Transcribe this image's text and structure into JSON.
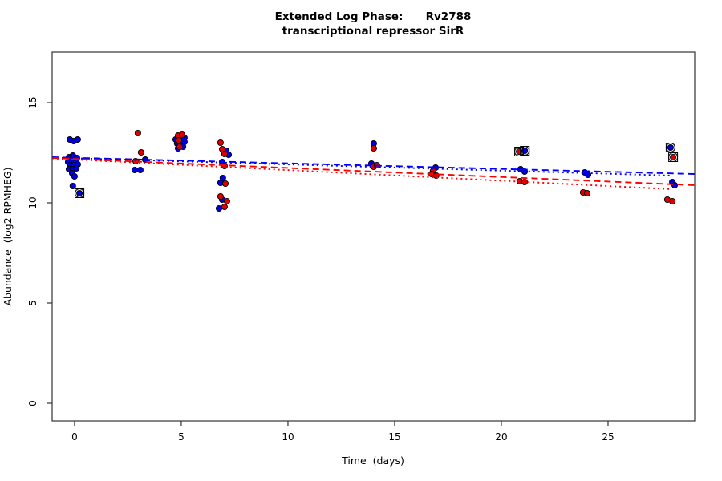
{
  "title": {
    "line1": "Extended Log Phase:      Rv2788",
    "line2": "transcriptional repressor SirR"
  },
  "chart_data": {
    "type": "scatter",
    "title": "Extended Log Phase:      Rv2788",
    "subtitle": "transcriptional repressor SirR",
    "xlabel": "Time  (days)",
    "ylabel": "Abundance  (log2 RPMHEG)",
    "x_ticks": [
      0,
      5,
      10,
      15,
      20,
      25
    ],
    "y_ticks": [
      0,
      5,
      10,
      15
    ],
    "xlim": [
      -1.05,
      29.06
    ],
    "ylim": [
      -0.88,
      17.52
    ],
    "grid": false,
    "legend": "none",
    "colors": {
      "point_blue": "#0000dd",
      "point_red": "#dd0000",
      "line_blue": "#0000ff",
      "line_red": "#ff0000",
      "point_stroke": "#000000",
      "outlier_ring": "#000000",
      "box": "#333333"
    },
    "series": [
      {
        "name": "blue",
        "color": "#0000dd",
        "points": [
          [
            -0.22,
            13.16
          ],
          [
            -0.04,
            13.08
          ],
          [
            0.15,
            13.16
          ],
          [
            -0.26,
            12.28
          ],
          [
            -0.08,
            12.36
          ],
          [
            0.11,
            12.24
          ],
          [
            -0.3,
            12.04
          ],
          [
            -0.11,
            12.08
          ],
          [
            0.08,
            12.04
          ],
          [
            -0.19,
            11.88
          ],
          [
            0.0,
            11.88
          ],
          [
            0.15,
            11.92
          ],
          [
            -0.26,
            11.68
          ],
          [
            -0.08,
            11.68
          ],
          [
            0.08,
            11.72
          ],
          [
            -0.11,
            11.48
          ],
          [
            0.0,
            11.32
          ],
          [
            -0.08,
            10.84
          ],
          [
            0.23,
            10.48
          ],
          [
            3.31,
            12.16
          ],
          [
            2.82,
            11.64
          ],
          [
            3.08,
            11.64
          ],
          [
            4.74,
            13.16
          ],
          [
            4.96,
            13.2
          ],
          [
            5.15,
            13.24
          ],
          [
            4.81,
            12.96
          ],
          [
            5.0,
            13.0
          ],
          [
            5.15,
            13.04
          ],
          [
            5.08,
            12.8
          ],
          [
            4.85,
            12.72
          ],
          [
            7.11,
            12.6
          ],
          [
            7.22,
            12.4
          ],
          [
            6.92,
            12.04
          ],
          [
            6.95,
            11.24
          ],
          [
            6.84,
            11.0
          ],
          [
            6.92,
            10.16
          ],
          [
            6.77,
            9.72
          ],
          [
            14.02,
            12.96
          ],
          [
            13.91,
            11.96
          ],
          [
            16.92,
            11.76
          ],
          [
            20.9,
            11.68
          ],
          [
            21.09,
            11.56
          ],
          [
            21.1,
            12.6
          ],
          [
            23.91,
            11.52
          ],
          [
            24.06,
            11.4
          ],
          [
            28.01,
            11.04
          ],
          [
            28.12,
            10.88
          ],
          [
            27.93,
            12.76
          ]
        ]
      },
      {
        "name": "red",
        "color": "#dd0000",
        "points": [
          [
            2.97,
            13.48
          ],
          [
            3.12,
            12.52
          ],
          [
            2.86,
            12.08
          ],
          [
            4.85,
            13.36
          ],
          [
            5.04,
            13.4
          ],
          [
            4.89,
            13.12
          ],
          [
            4.92,
            12.8
          ],
          [
            6.84,
            13.0
          ],
          [
            6.92,
            12.68
          ],
          [
            7.03,
            12.44
          ],
          [
            7.03,
            11.84
          ],
          [
            7.07,
            10.96
          ],
          [
            6.84,
            10.32
          ],
          [
            7.14,
            10.08
          ],
          [
            7.03,
            9.8
          ],
          [
            14.02,
            12.72
          ],
          [
            14.02,
            11.8
          ],
          [
            14.17,
            11.88
          ],
          [
            16.8,
            11.6
          ],
          [
            16.73,
            11.44
          ],
          [
            16.95,
            11.36
          ],
          [
            20.86,
            11.08
          ],
          [
            21.09,
            11.04
          ],
          [
            20.83,
            12.56
          ],
          [
            23.83,
            10.52
          ],
          [
            24.02,
            10.48
          ],
          [
            27.78,
            10.16
          ],
          [
            28.01,
            10.08
          ],
          [
            28.05,
            12.28
          ]
        ]
      }
    ],
    "outlier_markers": [
      {
        "series": "blue",
        "x": 0.23,
        "y": 10.48
      },
      {
        "series": "red",
        "x": 20.83,
        "y": 12.56
      },
      {
        "series": "blue",
        "x": 21.1,
        "y": 12.6
      },
      {
        "series": "blue",
        "x": 27.93,
        "y": 12.76
      },
      {
        "series": "red",
        "x": 28.05,
        "y": 12.28
      }
    ],
    "trend_lines": [
      {
        "name": "blue-dashed",
        "color": "#0000ff",
        "style": "dashed",
        "x": [
          -1.05,
          29.06
        ],
        "y": [
          12.28,
          11.44
        ]
      },
      {
        "name": "blue-dotted",
        "color": "#0000ff",
        "style": "dotted",
        "x": [
          -1.05,
          28.0
        ],
        "y": [
          12.26,
          11.36
        ]
      },
      {
        "name": "red-dashed",
        "color": "#ff0000",
        "style": "dashed",
        "x": [
          -1.05,
          29.06
        ],
        "y": [
          12.24,
          10.88
        ]
      },
      {
        "name": "red-dotted",
        "color": "#ff0000",
        "style": "dotted",
        "x": [
          -1.05,
          28.0
        ],
        "y": [
          12.22,
          10.68
        ]
      }
    ]
  }
}
